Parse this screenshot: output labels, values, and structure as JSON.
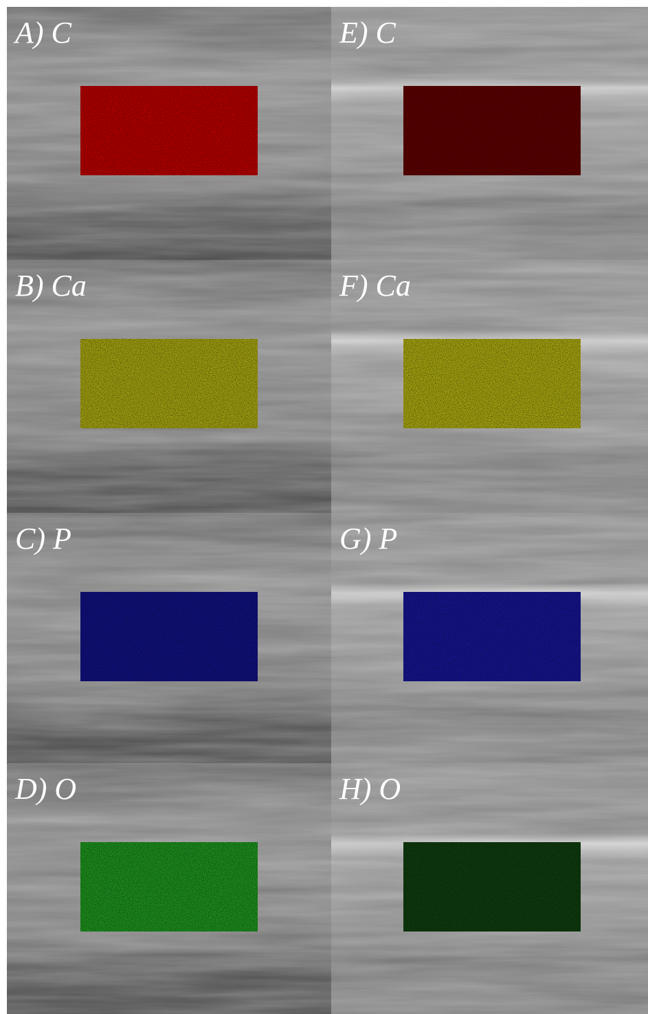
{
  "panels": [
    {
      "label": "A) C"
    },
    {
      "label": "E) C"
    },
    {
      "label": "B) Ca"
    },
    {
      "label": "F) Ca"
    },
    {
      "label": "C) P"
    },
    {
      "label": "G) P"
    },
    {
      "label": "D) O"
    },
    {
      "label": "H) O"
    }
  ]
}
